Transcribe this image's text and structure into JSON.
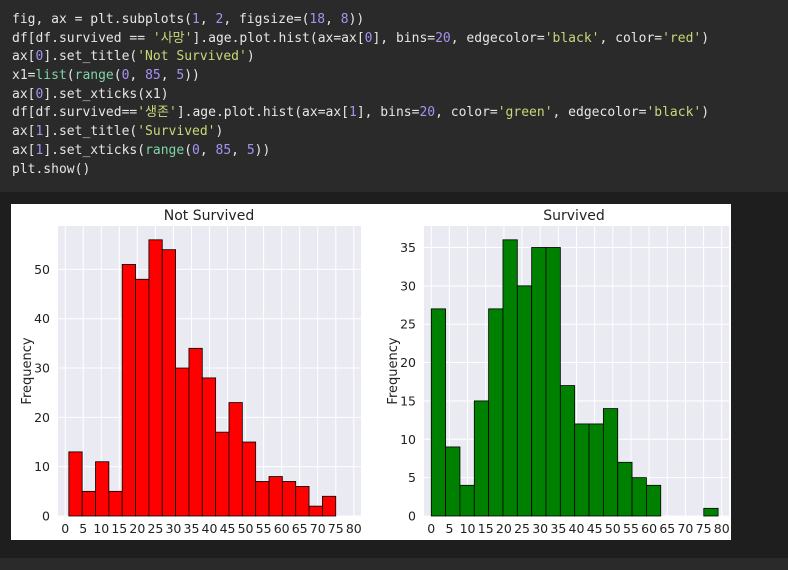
{
  "code": {
    "lines": [
      [
        [
          "fig, ax = plt.subplots(",
          "t"
        ],
        [
          "1",
          "n"
        ],
        [
          ", ",
          "t"
        ],
        [
          "2",
          "n"
        ],
        [
          ", figsize=(",
          "t"
        ],
        [
          "18",
          "n"
        ],
        [
          ", ",
          "t"
        ],
        [
          "8",
          "n"
        ],
        [
          "))",
          "t"
        ]
      ],
      [
        [
          "df[df.survived == ",
          "t"
        ],
        [
          "'사망'",
          "s"
        ],
        [
          "].age.plot.hist(ax=ax[",
          "t"
        ],
        [
          "0",
          "n"
        ],
        [
          "], bins=",
          "t"
        ],
        [
          "20",
          "n"
        ],
        [
          ", edgecolor=",
          "t"
        ],
        [
          "'black'",
          "s"
        ],
        [
          ", color=",
          "t"
        ],
        [
          "'red'",
          "s"
        ],
        [
          ")",
          "t"
        ]
      ],
      [
        [
          "ax[",
          "t"
        ],
        [
          "0",
          "n"
        ],
        [
          "].set_title(",
          "t"
        ],
        [
          "'Not Survived'",
          "s"
        ],
        [
          ")",
          "t"
        ]
      ],
      [
        [
          "x1=",
          "t"
        ],
        [
          "list",
          "f"
        ],
        [
          "(",
          "t"
        ],
        [
          "range",
          "f"
        ],
        [
          "(",
          "t"
        ],
        [
          "0",
          "n"
        ],
        [
          ", ",
          "t"
        ],
        [
          "85",
          "n"
        ],
        [
          ", ",
          "t"
        ],
        [
          "5",
          "n"
        ],
        [
          "))",
          "t"
        ]
      ],
      [
        [
          "ax[",
          "t"
        ],
        [
          "0",
          "n"
        ],
        [
          "].set_xticks(x1)",
          "t"
        ]
      ],
      [
        [
          "df[df.survived==",
          "t"
        ],
        [
          "'생존'",
          "s"
        ],
        [
          "].age.plot.hist(ax=ax[",
          "t"
        ],
        [
          "1",
          "n"
        ],
        [
          "], bins=",
          "t"
        ],
        [
          "20",
          "n"
        ],
        [
          ", color=",
          "t"
        ],
        [
          "'green'",
          "s"
        ],
        [
          ", edgecolor=",
          "t"
        ],
        [
          "'black'",
          "s"
        ],
        [
          ")",
          "t"
        ]
      ],
      [
        [
          "ax[",
          "t"
        ],
        [
          "1",
          "n"
        ],
        [
          "].set_title(",
          "t"
        ],
        [
          "'Survived'",
          "s"
        ],
        [
          ")",
          "t"
        ]
      ],
      [
        [
          "ax[",
          "t"
        ],
        [
          "1",
          "n"
        ],
        [
          "].set_xticks(",
          "t"
        ],
        [
          "range",
          "f"
        ],
        [
          "(",
          "t"
        ],
        [
          "0",
          "n"
        ],
        [
          ", ",
          "t"
        ],
        [
          "85",
          "n"
        ],
        [
          ", ",
          "t"
        ],
        [
          "5",
          "n"
        ],
        [
          "))",
          "t"
        ]
      ],
      [
        [
          "plt.show()",
          "t"
        ]
      ]
    ]
  },
  "chart_data": [
    {
      "type": "bar",
      "title": "Not Survived",
      "xlabel": "",
      "ylabel": "Frequency",
      "bin_edges": [
        1,
        4.7,
        8.4,
        12.1,
        15.8,
        19.5,
        23.2,
        26.9,
        30.6,
        34.3,
        38,
        41.7,
        45.4,
        49.1,
        52.8,
        56.5,
        60.2,
        63.9,
        67.6,
        71.3,
        75
      ],
      "values": [
        13,
        5,
        11,
        5,
        51,
        48,
        56,
        54,
        30,
        34,
        28,
        17,
        23,
        15,
        7,
        8,
        7,
        6,
        2,
        4
      ],
      "xticks": [
        0,
        5,
        10,
        15,
        20,
        25,
        30,
        35,
        40,
        45,
        50,
        55,
        60,
        65,
        70,
        75,
        80
      ],
      "yticks": [
        0,
        10,
        20,
        30,
        40,
        50
      ],
      "xlim": [
        -2,
        82
      ],
      "ylim": [
        0,
        58.8
      ],
      "fill_color": "#ff0000",
      "edge_color": "#000000",
      "grid": true
    },
    {
      "type": "bar",
      "title": "Survived",
      "xlabel": "",
      "ylabel": "Frequency",
      "bin_edges": [
        0,
        3.95,
        7.9,
        11.85,
        15.8,
        19.75,
        23.7,
        27.65,
        31.6,
        35.55,
        39.5,
        43.45,
        47.4,
        51.35,
        55.3,
        59.25,
        63.2,
        67.15,
        71.1,
        75.05,
        79
      ],
      "values": [
        27,
        9,
        4,
        15,
        27,
        36,
        30,
        35,
        35,
        17,
        12,
        12,
        14,
        7,
        5,
        4,
        0,
        0,
        0,
        1
      ],
      "xticks": [
        0,
        5,
        10,
        15,
        20,
        25,
        30,
        35,
        40,
        45,
        50,
        55,
        60,
        65,
        70,
        75,
        80
      ],
      "yticks": [
        0,
        5,
        10,
        15,
        20,
        25,
        30,
        35
      ],
      "xlim": [
        -2,
        82
      ],
      "ylim": [
        0,
        37.8
      ],
      "fill_color": "#008000",
      "edge_color": "#000000",
      "grid": true
    }
  ]
}
